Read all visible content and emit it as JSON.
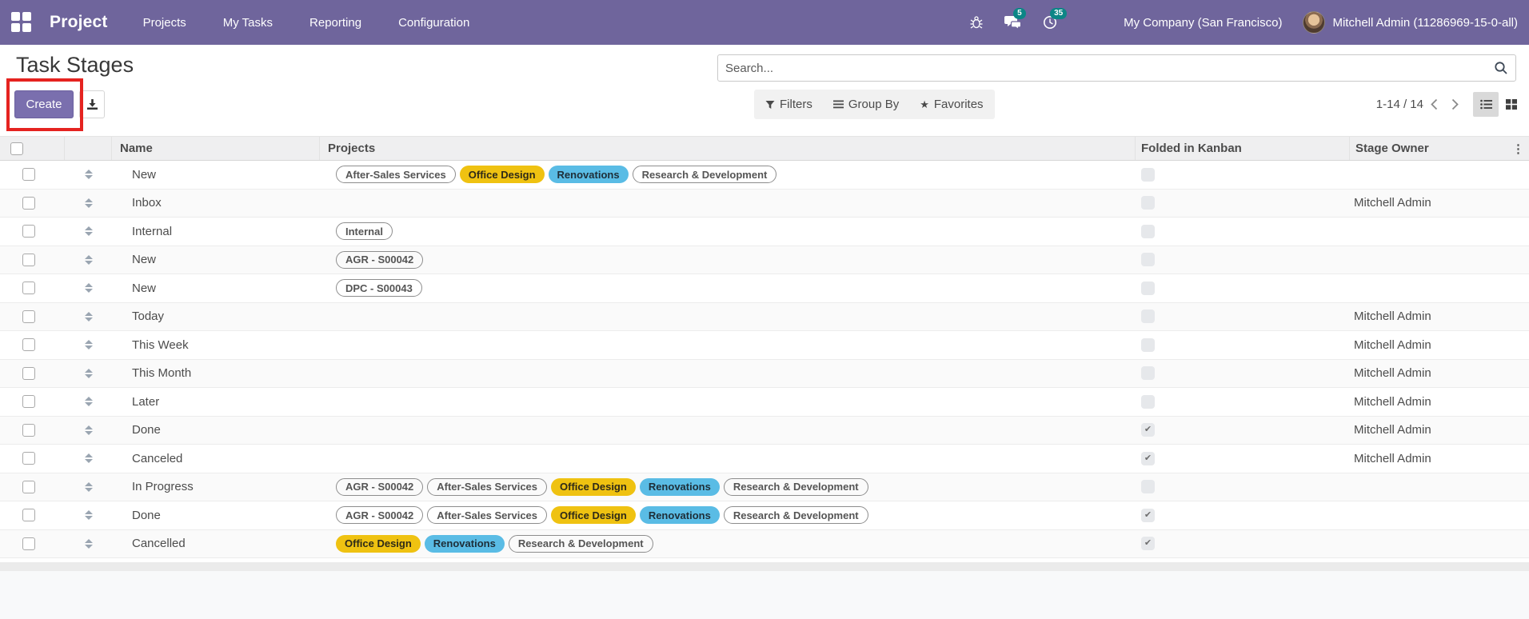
{
  "navbar": {
    "brand": "Project",
    "menus": [
      {
        "label": "Projects"
      },
      {
        "label": "My Tasks"
      },
      {
        "label": "Reporting"
      },
      {
        "label": "Configuration"
      }
    ],
    "messages_badge": "5",
    "activities_badge": "35",
    "company": "My Company (San Francisco)",
    "user": "Mitchell Admin (11286969-15-0-all)",
    "bg_color": "#6f659c",
    "badge_color": "#0c8686"
  },
  "header": {
    "title": "Task Stages",
    "create_label": "Create",
    "annotation_color": "#e52320",
    "create_color": "#7a6fae"
  },
  "search": {
    "placeholder": "Search..."
  },
  "controls": {
    "filters": "Filters",
    "group_by": "Group By",
    "favorites": "Favorites",
    "pager": "1-14 / 14"
  },
  "table": {
    "columns": {
      "name": "Name",
      "projects": "Projects",
      "folded": "Folded in Kanban",
      "owner": "Stage Owner"
    },
    "tag_colors": {
      "yellow": "#efc211",
      "blue": "#5abce5"
    },
    "rows": [
      {
        "name": "New",
        "tags": [
          {
            "label": "After-Sales Services",
            "style": "outline"
          },
          {
            "label": "Office Design",
            "style": "yellow"
          },
          {
            "label": "Renovations",
            "style": "blue"
          },
          {
            "label": "Research & Development",
            "style": "outline"
          }
        ],
        "folded": false,
        "owner": ""
      },
      {
        "name": "Inbox",
        "tags": [],
        "folded": false,
        "owner": "Mitchell Admin"
      },
      {
        "name": "Internal",
        "tags": [
          {
            "label": "Internal",
            "style": "outline"
          }
        ],
        "folded": false,
        "owner": ""
      },
      {
        "name": "New",
        "tags": [
          {
            "label": "AGR - S00042",
            "style": "outline"
          }
        ],
        "folded": false,
        "owner": ""
      },
      {
        "name": "New",
        "tags": [
          {
            "label": "DPC - S00043",
            "style": "outline"
          }
        ],
        "folded": false,
        "owner": ""
      },
      {
        "name": "Today",
        "tags": [],
        "folded": false,
        "owner": "Mitchell Admin"
      },
      {
        "name": "This Week",
        "tags": [],
        "folded": false,
        "owner": "Mitchell Admin"
      },
      {
        "name": "This Month",
        "tags": [],
        "folded": false,
        "owner": "Mitchell Admin"
      },
      {
        "name": "Later",
        "tags": [],
        "folded": false,
        "owner": "Mitchell Admin"
      },
      {
        "name": "Done",
        "tags": [],
        "folded": true,
        "owner": "Mitchell Admin"
      },
      {
        "name": "Canceled",
        "tags": [],
        "folded": true,
        "owner": "Mitchell Admin"
      },
      {
        "name": "In Progress",
        "tags": [
          {
            "label": "AGR - S00042",
            "style": "outline"
          },
          {
            "label": "After-Sales Services",
            "style": "outline"
          },
          {
            "label": "Office Design",
            "style": "yellow"
          },
          {
            "label": "Renovations",
            "style": "blue"
          },
          {
            "label": "Research & Development",
            "style": "outline"
          }
        ],
        "folded": false,
        "owner": ""
      },
      {
        "name": "Done",
        "tags": [
          {
            "label": "AGR - S00042",
            "style": "outline"
          },
          {
            "label": "After-Sales Services",
            "style": "outline"
          },
          {
            "label": "Office Design",
            "style": "yellow"
          },
          {
            "label": "Renovations",
            "style": "blue"
          },
          {
            "label": "Research & Development",
            "style": "outline"
          }
        ],
        "folded": true,
        "owner": ""
      },
      {
        "name": "Cancelled",
        "tags": [
          {
            "label": "Office Design",
            "style": "yellow"
          },
          {
            "label": "Renovations",
            "style": "blue"
          },
          {
            "label": "Research & Development",
            "style": "outline"
          }
        ],
        "folded": true,
        "owner": ""
      }
    ]
  }
}
